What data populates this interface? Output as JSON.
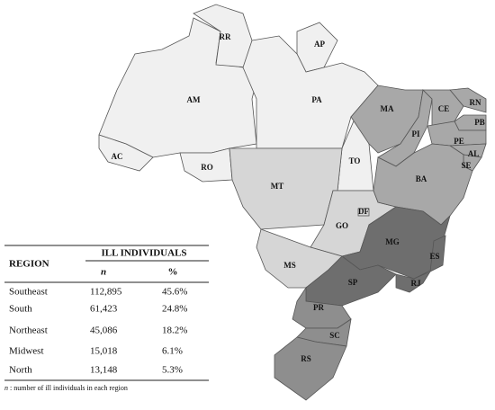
{
  "map": {
    "states": [
      "RR",
      "AP",
      "AM",
      "PA",
      "MA",
      "CE",
      "RN",
      "PB",
      "PI",
      "PE",
      "AL",
      "SE",
      "AC",
      "RO",
      "TO",
      "BA",
      "MT",
      "DF",
      "GO",
      "MG",
      "ES",
      "MS",
      "SP",
      "RJ",
      "PR",
      "SC",
      "RS"
    ]
  },
  "table": {
    "title": "ILL INDIVIDUALS",
    "header": [
      "REGION",
      "n",
      "%"
    ],
    "rows": [
      [
        "Southeast",
        "112,895",
        "45.6%"
      ],
      [
        "South",
        "61,423",
        "24.8%"
      ],
      [
        "Northeast",
        "45,086",
        "18.2%"
      ],
      [
        "Midwest",
        "15,018",
        "6.1%"
      ],
      [
        "North",
        "13,148",
        "5.3%"
      ]
    ],
    "footnote_symbol": "n",
    "footnote": ": number of ill individuals in each region"
  }
}
